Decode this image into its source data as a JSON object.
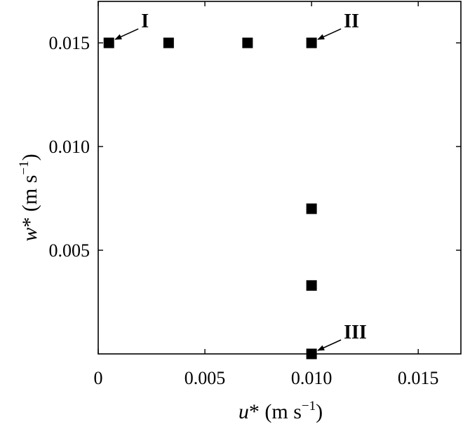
{
  "chart_data": {
    "type": "scatter",
    "xlim": [
      0,
      0.017
    ],
    "ylim": [
      0,
      0.017
    ],
    "xticks": [
      {
        "value": 0,
        "label": "0"
      },
      {
        "value": 0.005,
        "label": "0.005"
      },
      {
        "value": 0.01,
        "label": "0.010"
      },
      {
        "value": 0.015,
        "label": "0.015"
      }
    ],
    "yticks": [
      {
        "value": 0.005,
        "label": "0.005"
      },
      {
        "value": 0.01,
        "label": "0.010"
      },
      {
        "value": 0.015,
        "label": "0.015"
      }
    ],
    "xlabel": {
      "var": "u",
      "unit_base": "* (m s",
      "unit_exp": "−1",
      "close": ")"
    },
    "ylabel": {
      "var": "w",
      "unit_base": "* (m s",
      "unit_exp": "−1",
      "close": ")"
    },
    "points": [
      {
        "x": 0.0005,
        "y": 0.015
      },
      {
        "x": 0.0033,
        "y": 0.015
      },
      {
        "x": 0.007,
        "y": 0.015
      },
      {
        "x": 0.01,
        "y": 0.015
      },
      {
        "x": 0.01,
        "y": 0.007
      },
      {
        "x": 0.01,
        "y": 0.0033
      },
      {
        "x": 0.01,
        "y": 0.0
      }
    ],
    "annotations": [
      {
        "label": "I",
        "x": 0.0005,
        "y": 0.015,
        "side": "right"
      },
      {
        "label": "II",
        "x": 0.01,
        "y": 0.015,
        "side": "right"
      },
      {
        "label": "III",
        "x": 0.01,
        "y": 0.0,
        "side": "right"
      }
    ],
    "grid": false,
    "marker": "square",
    "color": "#000000"
  }
}
